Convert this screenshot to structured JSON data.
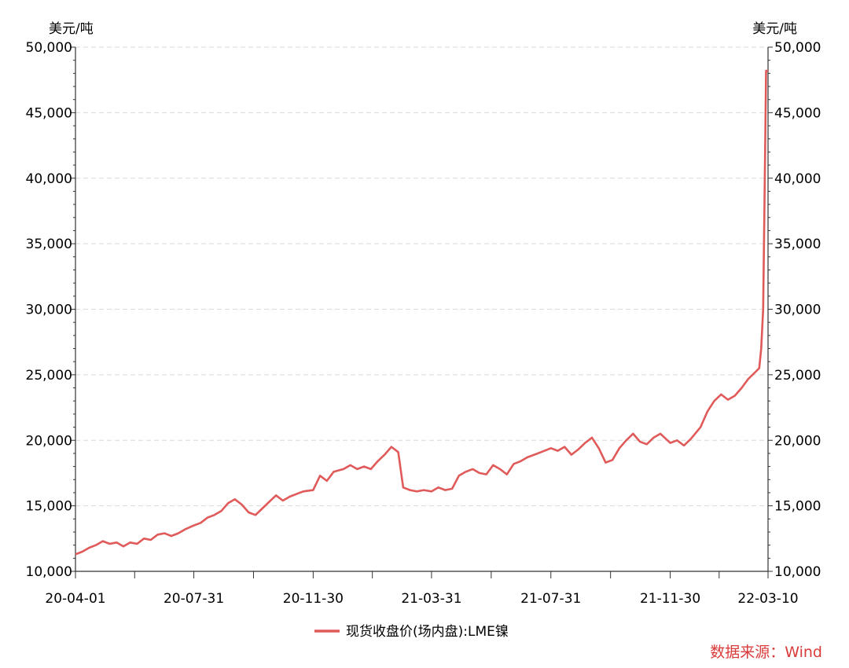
{
  "chart_data": {
    "type": "line",
    "y_unit_left": "美元/吨",
    "y_unit_right": "美元/吨",
    "ylim": [
      10000,
      50000
    ],
    "y_ticks": [
      10000,
      15000,
      20000,
      25000,
      30000,
      35000,
      40000,
      45000,
      50000
    ],
    "y_tick_labels": [
      "10,000",
      "15,000",
      "20,000",
      "25,000",
      "30,000",
      "35,000",
      "40,000",
      "45,000",
      "50,000"
    ],
    "xlim": [
      "2020-04-01",
      "2022-03-10"
    ],
    "x_ticks": [
      "2020-04-01",
      "2020-07-31",
      "2020-11-30",
      "2021-03-31",
      "2021-07-31",
      "2021-11-30",
      "2022-03-10"
    ],
    "x_tick_labels": [
      "20-04-01",
      "20-07-31",
      "20-11-30",
      "21-03-31",
      "21-07-31",
      "21-11-30",
      "22-03-10"
    ],
    "grid": true,
    "legend_position": "bottom",
    "source": "数据来源：Wind",
    "series": [
      {
        "name": "现货收盘价(场内盘):LME镍",
        "color": "#e05a5a",
        "points": [
          [
            "2020-04-01",
            11300
          ],
          [
            "2020-04-08",
            11500
          ],
          [
            "2020-04-15",
            11800
          ],
          [
            "2020-04-22",
            12000
          ],
          [
            "2020-04-29",
            12300
          ],
          [
            "2020-05-06",
            12100
          ],
          [
            "2020-05-13",
            12200
          ],
          [
            "2020-05-20",
            11900
          ],
          [
            "2020-05-27",
            12200
          ],
          [
            "2020-06-03",
            12100
          ],
          [
            "2020-06-10",
            12500
          ],
          [
            "2020-06-17",
            12400
          ],
          [
            "2020-06-24",
            12800
          ],
          [
            "2020-07-01",
            12900
          ],
          [
            "2020-07-08",
            12700
          ],
          [
            "2020-07-15",
            12900
          ],
          [
            "2020-07-22",
            13200
          ],
          [
            "2020-07-31",
            13500
          ],
          [
            "2020-08-07",
            13700
          ],
          [
            "2020-08-14",
            14100
          ],
          [
            "2020-08-21",
            14300
          ],
          [
            "2020-08-28",
            14600
          ],
          [
            "2020-09-04",
            15200
          ],
          [
            "2020-09-11",
            15500
          ],
          [
            "2020-09-18",
            15100
          ],
          [
            "2020-09-25",
            14500
          ],
          [
            "2020-10-02",
            14300
          ],
          [
            "2020-10-09",
            14800
          ],
          [
            "2020-10-16",
            15300
          ],
          [
            "2020-10-23",
            15800
          ],
          [
            "2020-10-30",
            15400
          ],
          [
            "2020-11-06",
            15700
          ],
          [
            "2020-11-13",
            15900
          ],
          [
            "2020-11-20",
            16100
          ],
          [
            "2020-11-30",
            16200
          ],
          [
            "2020-12-07",
            17300
          ],
          [
            "2020-12-14",
            16900
          ],
          [
            "2020-12-21",
            17600
          ],
          [
            "2020-12-31",
            17800
          ],
          [
            "2021-01-07",
            18100
          ],
          [
            "2021-01-14",
            17800
          ],
          [
            "2021-01-21",
            18000
          ],
          [
            "2021-01-28",
            17800
          ],
          [
            "2021-02-04",
            18400
          ],
          [
            "2021-02-11",
            18900
          ],
          [
            "2021-02-18",
            19500
          ],
          [
            "2021-02-25",
            19100
          ],
          [
            "2021-03-02",
            16400
          ],
          [
            "2021-03-09",
            16200
          ],
          [
            "2021-03-16",
            16100
          ],
          [
            "2021-03-23",
            16200
          ],
          [
            "2021-03-31",
            16100
          ],
          [
            "2021-04-07",
            16400
          ],
          [
            "2021-04-14",
            16200
          ],
          [
            "2021-04-21",
            16300
          ],
          [
            "2021-04-28",
            17300
          ],
          [
            "2021-05-05",
            17600
          ],
          [
            "2021-05-12",
            17800
          ],
          [
            "2021-05-19",
            17500
          ],
          [
            "2021-05-26",
            17400
          ],
          [
            "2021-06-02",
            18100
          ],
          [
            "2021-06-09",
            17800
          ],
          [
            "2021-06-16",
            17400
          ],
          [
            "2021-06-23",
            18200
          ],
          [
            "2021-06-30",
            18400
          ],
          [
            "2021-07-07",
            18700
          ],
          [
            "2021-07-14",
            18900
          ],
          [
            "2021-07-21",
            19100
          ],
          [
            "2021-07-31",
            19400
          ],
          [
            "2021-08-07",
            19200
          ],
          [
            "2021-08-14",
            19500
          ],
          [
            "2021-08-21",
            18900
          ],
          [
            "2021-08-28",
            19300
          ],
          [
            "2021-09-04",
            19800
          ],
          [
            "2021-09-11",
            20200
          ],
          [
            "2021-09-18",
            19400
          ],
          [
            "2021-09-25",
            18300
          ],
          [
            "2021-10-02",
            18500
          ],
          [
            "2021-10-09",
            19400
          ],
          [
            "2021-10-16",
            20000
          ],
          [
            "2021-10-23",
            20500
          ],
          [
            "2021-10-30",
            19900
          ],
          [
            "2021-11-06",
            19700
          ],
          [
            "2021-11-13",
            20200
          ],
          [
            "2021-11-20",
            20500
          ],
          [
            "2021-11-30",
            19800
          ],
          [
            "2021-12-07",
            20000
          ],
          [
            "2021-12-14",
            19600
          ],
          [
            "2021-12-21",
            20100
          ],
          [
            "2021-12-31",
            21000
          ],
          [
            "2022-01-07",
            22200
          ],
          [
            "2022-01-14",
            23000
          ],
          [
            "2022-01-21",
            23500
          ],
          [
            "2022-01-28",
            23100
          ],
          [
            "2022-02-04",
            23400
          ],
          [
            "2022-02-11",
            24000
          ],
          [
            "2022-02-18",
            24700
          ],
          [
            "2022-02-25",
            25200
          ],
          [
            "2022-03-01",
            25500
          ],
          [
            "2022-03-03",
            27000
          ],
          [
            "2022-03-05",
            30000
          ],
          [
            "2022-03-07",
            42000
          ],
          [
            "2022-03-08",
            48200
          ],
          [
            "2022-03-10",
            48200
          ]
        ]
      }
    ]
  }
}
